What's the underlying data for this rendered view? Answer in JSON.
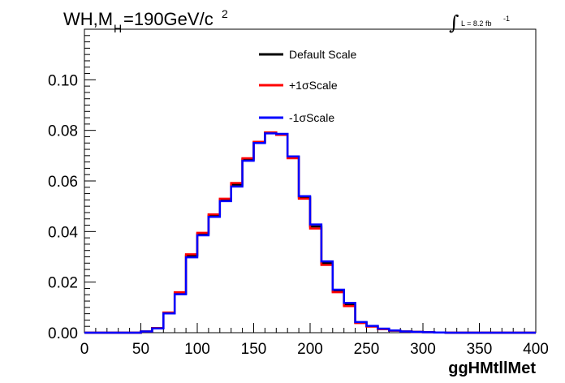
{
  "chart_data": {
    "type": "line",
    "title_main": "WH,M",
    "title_sub": "H",
    "title_rest": "=190GeV/c",
    "title_sup": "2",
    "lumi_text": "L = 8.2 fb",
    "lumi_sup": "-1",
    "xlabel": "ggHMtllMet",
    "ylabel": "",
    "xlim": [
      0,
      400
    ],
    "ylim": [
      0,
      0.12
    ],
    "x_ticks": [
      "0",
      "50",
      "100",
      "150",
      "200",
      "250",
      "300",
      "350",
      "400"
    ],
    "y_ticks": [
      "0.00",
      "0.02",
      "0.04",
      "0.06",
      "0.08",
      "0.10"
    ],
    "bin_edges": [
      0,
      10,
      20,
      30,
      40,
      50,
      60,
      70,
      80,
      90,
      100,
      110,
      120,
      130,
      140,
      150,
      160,
      170,
      180,
      190,
      200,
      210,
      220,
      230,
      240,
      250,
      260,
      270,
      280,
      290,
      300,
      310,
      320,
      330,
      340,
      350,
      360,
      370,
      380,
      390,
      400
    ],
    "legend_position": "top-center",
    "series": [
      {
        "name": "Default Scale",
        "color": "#000000",
        "values": [
          0,
          0,
          0,
          0,
          0,
          0.0005,
          0.0018,
          0.0078,
          0.0155,
          0.0305,
          0.039,
          0.0462,
          0.0525,
          0.0585,
          0.0685,
          0.0752,
          0.079,
          0.0785,
          0.0695,
          0.0535,
          0.042,
          0.0275,
          0.0165,
          0.011,
          0.004,
          0.0025,
          0.0015,
          0.0008,
          0.0005,
          0.0003,
          0.0002,
          0.0001,
          0,
          0,
          0,
          0,
          0,
          0,
          0,
          0
        ]
      },
      {
        "name": "+1σScale",
        "color": "#ff0000",
        "values": [
          0,
          0,
          0,
          0,
          0,
          0.0005,
          0.0018,
          0.008,
          0.016,
          0.031,
          0.0395,
          0.0468,
          0.053,
          0.0592,
          0.069,
          0.0755,
          0.0792,
          0.0782,
          0.069,
          0.053,
          0.0412,
          0.0268,
          0.016,
          0.0105,
          0.0038,
          0.0024,
          0.0014,
          0.0008,
          0.0005,
          0.0003,
          0.0002,
          0.0001,
          0,
          0,
          0,
          0,
          0,
          0,
          0,
          0
        ]
      },
      {
        "name": "-1σScale",
        "color": "#0000ff",
        "values": [
          0,
          0,
          0,
          0,
          0,
          0.0005,
          0.0017,
          0.0076,
          0.0152,
          0.0298,
          0.0385,
          0.0458,
          0.052,
          0.0578,
          0.068,
          0.075,
          0.0788,
          0.0786,
          0.0697,
          0.054,
          0.0428,
          0.0282,
          0.017,
          0.0118,
          0.0042,
          0.0027,
          0.0016,
          0.0009,
          0.0005,
          0.0003,
          0.0002,
          0.0001,
          0,
          0,
          0,
          0,
          0,
          0,
          0,
          0
        ]
      }
    ]
  }
}
